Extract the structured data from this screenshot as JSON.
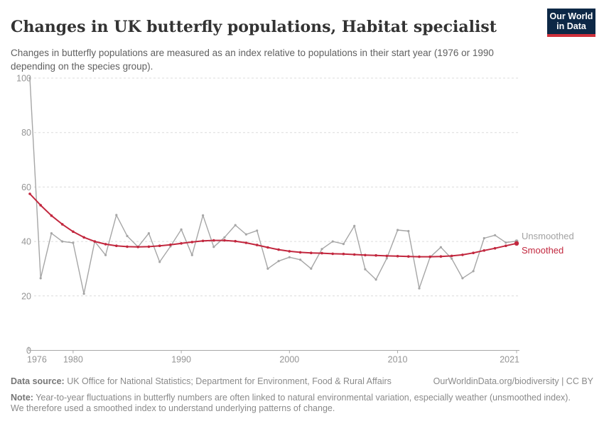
{
  "header": {
    "title": "Changes in UK butterfly populations, Habitat specialist",
    "subtitle": "Changes in butterfly populations are measured as an index relative to populations in their start year (1976 or 1990 depending on the species group).",
    "logo": {
      "line1": "Our World",
      "line2": "in Data"
    }
  },
  "chart_data": {
    "type": "line",
    "title": "Changes in UK butterfly populations, Habitat specialist",
    "x": [
      1976,
      1977,
      1978,
      1979,
      1980,
      1981,
      1982,
      1983,
      1984,
      1985,
      1986,
      1987,
      1988,
      1989,
      1990,
      1991,
      1992,
      1993,
      1994,
      1995,
      1996,
      1997,
      1998,
      1999,
      2000,
      2001,
      2002,
      2003,
      2004,
      2005,
      2006,
      2007,
      2008,
      2009,
      2010,
      2011,
      2012,
      2013,
      2014,
      2015,
      2016,
      2017,
      2018,
      2019,
      2020,
      2021
    ],
    "series": [
      {
        "name": "Unsmoothed",
        "color": "#a6a6a6",
        "label_color": "#a2a2a2",
        "values": [
          100,
          26.5,
          43,
          40,
          39.5,
          20.8,
          40,
          35,
          49.7,
          42,
          38,
          43,
          32.5,
          38.2,
          44.4,
          35,
          49.6,
          38,
          41.5,
          46,
          42.6,
          44,
          30,
          32.8,
          34.2,
          33.3,
          30,
          37.2,
          40,
          39.1,
          45.7,
          29.8,
          26,
          33.8,
          44.2,
          43.8,
          22.8,
          34.2,
          37.9,
          33.7,
          26.5,
          29.1,
          41.2,
          42.3,
          39.6,
          40.1
        ]
      },
      {
        "name": "Smoothed",
        "color": "#c2273e",
        "label_color": "#c2273e",
        "values": [
          57.5,
          53.3,
          49.5,
          46.3,
          43.6,
          41.5,
          40,
          39,
          38.4,
          38.1,
          38,
          38.1,
          38.4,
          38.8,
          39.3,
          39.8,
          40.2,
          40.4,
          40.4,
          40.1,
          39.5,
          38.7,
          37.8,
          37,
          36.4,
          36,
          35.8,
          35.7,
          35.5,
          35.4,
          35.2,
          35,
          34.9,
          34.7,
          34.6,
          34.5,
          34.4,
          34.4,
          34.5,
          34.7,
          35.1,
          35.8,
          36.7,
          37.5,
          38.4,
          39.3
        ]
      }
    ],
    "ylim": [
      0,
      100
    ],
    "yticks": [
      0,
      20,
      40,
      60,
      80,
      100
    ],
    "xticks": [
      1976,
      1980,
      1990,
      2000,
      2010,
      2021
    ],
    "grid": "horizontal-dashed",
    "legend_position": "right-end-labels",
    "xlabel": "",
    "ylabel": ""
  },
  "colors": {
    "grid": "#dcdcdc",
    "axis": "#a8a8a8",
    "navy": "#0d2846",
    "logo_red": "#cf303b"
  },
  "footer": {
    "source_label": "Data source:",
    "source_text": " UK Office for National Statistics; Department for Environment, Food & Rural Affairs",
    "link": "OurWorldinData.org/biodiversity | CC BY",
    "note_label": "Note:",
    "note_text": " Year-to-year fluctuations in butterfly numbers are often linked to natural environmental variation, especially weather (unsmoothed index). We therefore used a smoothed index to understand underlying patterns of change."
  }
}
